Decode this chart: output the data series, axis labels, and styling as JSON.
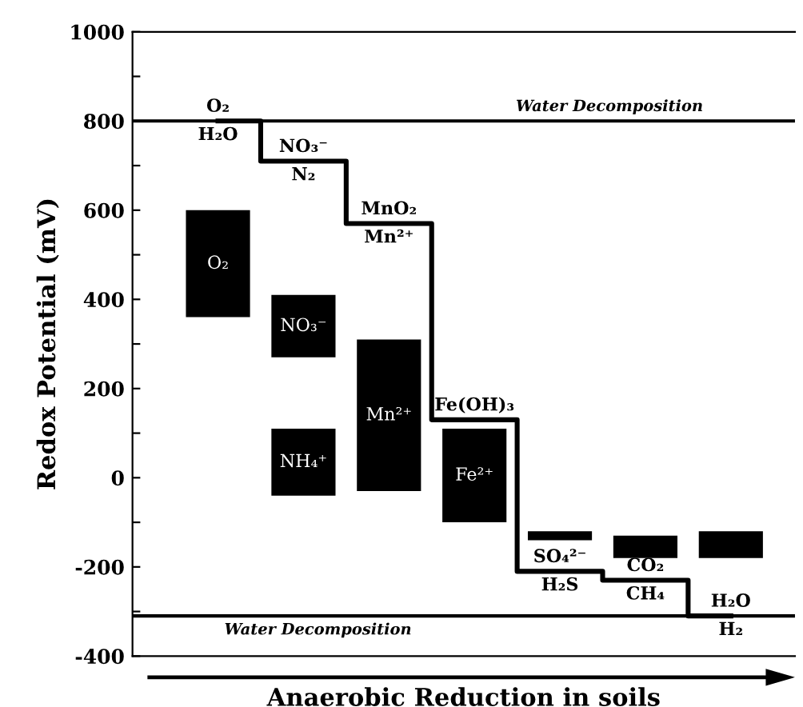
{
  "chart_data": {
    "type": "bar",
    "xlabel": "Anaerobic Reduction in soils",
    "ylabel": "Redox Potential (mV)",
    "categories": [
      null,
      null,
      null,
      null,
      null,
      null,
      null
    ],
    "series": [
      {
        "color": "#000000",
        "base": [
          360,
          270,
          -30,
          -100,
          -140,
          -180,
          -180
        ],
        "values": [
          240,
          140,
          340,
          210,
          20,
          50,
          60
        ],
        "value_labels": [
          "O₂",
          "NO₃⁻",
          "Mn²⁺",
          "Fe²⁺",
          null,
          null,
          null
        ]
      },
      {
        "color": "#000000",
        "base": [
          null,
          -40,
          null,
          null,
          null,
          null,
          null
        ],
        "values": [
          null,
          150,
          null,
          null,
          null,
          null,
          null
        ],
        "value_labels": [
          null,
          "NH₄⁺",
          null,
          null,
          null,
          null,
          null
        ]
      },
      {
        "type": "step",
        "color": "#000000",
        "values": [
          800,
          710,
          570,
          130,
          -210,
          -230,
          -310
        ]
      }
    ],
    "annotations": [
      "O₂",
      "H₂O",
      "NO₃⁻",
      "N₂",
      "MnO₂",
      "Mn²⁺",
      "Fe(OH)₃",
      "SO₄²⁻",
      "H₂S",
      "CO₂",
      "CH₄",
      "H₂O",
      "H₂"
    ],
    "ref_lines": [
      {
        "axis": "y",
        "value": 800,
        "label": "Water Decomposition",
        "color": "#000000"
      },
      {
        "axis": "y",
        "value": -310,
        "label": "Water Decomposition",
        "color": "#000000"
      }
    ],
    "ylim": [
      -400,
      1000
    ],
    "yticks": [
      -400,
      {
        "value": -300,
        "label": null
      },
      -200,
      {
        "value": -100,
        "label": null
      },
      0,
      {
        "value": 100,
        "label": null
      },
      200,
      {
        "value": 300,
        "label": null
      },
      400,
      {
        "value": 500,
        "label": null
      },
      600,
      {
        "value": 700,
        "label": null
      },
      800,
      {
        "value": 900,
        "label": null
      },
      1000
    ],
    "tick_labels": "y"
  }
}
